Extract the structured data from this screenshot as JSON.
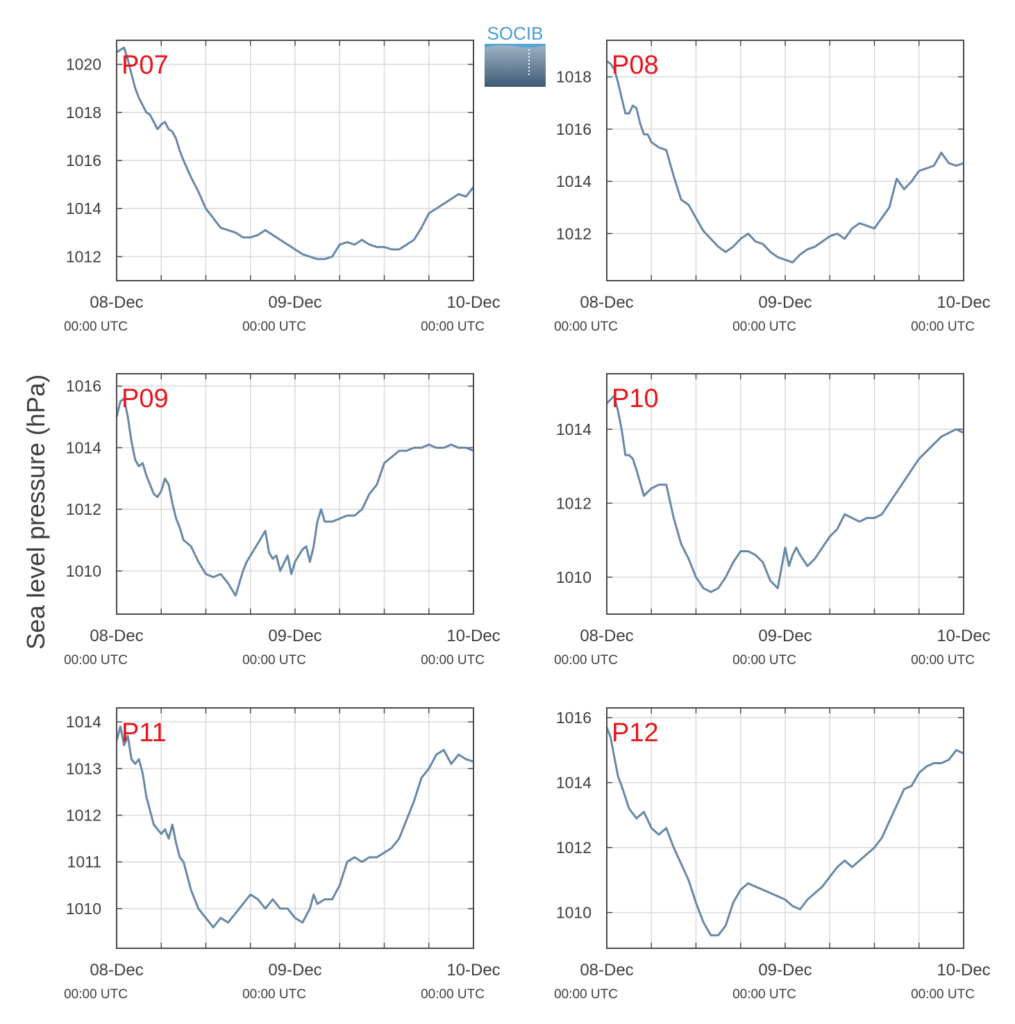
{
  "figure": {
    "ylabel": "Sea level pressure (hPa)",
    "logo_text": "SOCIB",
    "line_color": "#6787a6",
    "label_color": "#e8141b"
  },
  "chart_data": [
    {
      "type": "line",
      "name": "P07",
      "x_ticks": [
        {
          "major": "08-Dec",
          "minor": "00:00 UTC"
        },
        {
          "major": "09-Dec",
          "minor": "00:00 UTC"
        },
        {
          "major": "10-Dec",
          "minor": "00:00 UTC"
        }
      ],
      "xlim_hours": [
        0,
        48
      ],
      "ylim": [
        1011,
        1021
      ],
      "y_ticks": [
        1012,
        1014,
        1016,
        1018,
        1020
      ],
      "grid": true,
      "series": {
        "x_hours": [
          0,
          0.5,
          1,
          1.5,
          2,
          2.5,
          3,
          3.5,
          4,
          4.5,
          5,
          5.5,
          6,
          6.5,
          7,
          7.5,
          8,
          8.5,
          9,
          10,
          11,
          12,
          13,
          14,
          15,
          16,
          17,
          18,
          19,
          20,
          21,
          22,
          23,
          24,
          25,
          26,
          27,
          28,
          29,
          30,
          31,
          32,
          33,
          34,
          35,
          36,
          37,
          38,
          39,
          40,
          41,
          42,
          43,
          44,
          45,
          46,
          47,
          48
        ],
        "values": [
          1020.5,
          1020.6,
          1020.7,
          1020.2,
          1019.6,
          1019.0,
          1018.6,
          1018.3,
          1018.0,
          1017.9,
          1017.6,
          1017.3,
          1017.5,
          1017.6,
          1017.3,
          1017.2,
          1016.9,
          1016.4,
          1016.0,
          1015.3,
          1014.7,
          1014.0,
          1013.6,
          1013.2,
          1013.1,
          1013.0,
          1012.8,
          1012.8,
          1012.9,
          1013.1,
          1012.9,
          1012.7,
          1012.5,
          1012.3,
          1012.1,
          1012.0,
          1011.9,
          1011.9,
          1012.0,
          1012.5,
          1012.6,
          1012.5,
          1012.7,
          1012.5,
          1012.4,
          1012.4,
          1012.3,
          1012.3,
          1012.5,
          1012.7,
          1013.2,
          1013.8,
          1014.0,
          1014.2,
          1014.4,
          1014.6,
          1014.5,
          1014.9
        ]
      }
    },
    {
      "type": "line",
      "name": "P08",
      "x_ticks": [
        {
          "major": "08-Dec",
          "minor": "00:00 UTC"
        },
        {
          "major": "09-Dec",
          "minor": "00:00 UTC"
        },
        {
          "major": "10-Dec",
          "minor": "00:00 UTC"
        }
      ],
      "xlim_hours": [
        0,
        48
      ],
      "ylim": [
        1010.2,
        1019.4
      ],
      "y_ticks": [
        1012,
        1014,
        1016,
        1018
      ],
      "grid": true,
      "series": {
        "x_hours": [
          0,
          0.5,
          1,
          1.5,
          2,
          2.5,
          3,
          3.5,
          4,
          4.5,
          5,
          5.5,
          6,
          7,
          8,
          9,
          10,
          11,
          12,
          13,
          14,
          15,
          16,
          17,
          18,
          19,
          20,
          21,
          22,
          23,
          24,
          25,
          26,
          27,
          28,
          29,
          30,
          31,
          32,
          33,
          34,
          35,
          36,
          37,
          38,
          39,
          40,
          41,
          42,
          43,
          44,
          45,
          46,
          47,
          48
        ],
        "values": [
          1018.6,
          1018.5,
          1018.3,
          1017.8,
          1017.2,
          1016.6,
          1016.6,
          1016.9,
          1016.8,
          1016.2,
          1015.8,
          1015.8,
          1015.5,
          1015.3,
          1015.2,
          1014.2,
          1013.3,
          1013.1,
          1012.6,
          1012.1,
          1011.8,
          1011.5,
          1011.3,
          1011.5,
          1011.8,
          1012.0,
          1011.7,
          1011.6,
          1011.3,
          1011.1,
          1011.0,
          1010.9,
          1011.2,
          1011.4,
          1011.5,
          1011.7,
          1011.9,
          1012.0,
          1011.8,
          1012.2,
          1012.4,
          1012.3,
          1012.2,
          1012.6,
          1013.0,
          1014.1,
          1013.7,
          1014.0,
          1014.4,
          1014.5,
          1014.6,
          1015.1,
          1014.7,
          1014.6,
          1014.7
        ]
      }
    },
    {
      "type": "line",
      "name": "P09",
      "x_ticks": [
        {
          "major": "08-Dec",
          "minor": "00:00 UTC"
        },
        {
          "major": "09-Dec",
          "minor": "00:00 UTC"
        },
        {
          "major": "10-Dec",
          "minor": "00:00 UTC"
        }
      ],
      "xlim_hours": [
        0,
        48
      ],
      "ylim": [
        1008.6,
        1016.4
      ],
      "y_ticks": [
        1010,
        1012,
        1014,
        1016
      ],
      "grid": true,
      "series": {
        "x_hours": [
          0,
          0.5,
          1,
          1.5,
          2,
          2.5,
          3,
          3.5,
          4,
          4.5,
          5,
          5.5,
          6,
          6.5,
          7,
          7.5,
          8,
          8.5,
          9,
          10,
          11,
          12,
          13,
          14,
          15,
          16,
          17,
          17.5,
          18,
          19,
          20,
          20.5,
          21,
          21.5,
          22,
          23,
          23.5,
          24,
          25,
          25.5,
          26,
          26.5,
          27,
          27.5,
          28,
          29,
          30,
          31,
          32,
          33,
          34,
          35,
          36,
          37,
          38,
          39,
          40,
          41,
          42,
          43,
          44,
          45,
          46,
          47,
          48
        ],
        "values": [
          1015.0,
          1015.5,
          1015.6,
          1015.0,
          1014.2,
          1013.6,
          1013.4,
          1013.5,
          1013.1,
          1012.8,
          1012.5,
          1012.4,
          1012.6,
          1013.0,
          1012.8,
          1012.2,
          1011.7,
          1011.4,
          1011.0,
          1010.8,
          1010.3,
          1009.9,
          1009.8,
          1009.9,
          1009.6,
          1009.2,
          1010.0,
          1010.3,
          1010.5,
          1010.9,
          1011.3,
          1010.6,
          1010.4,
          1010.5,
          1010.0,
          1010.5,
          1009.9,
          1010.3,
          1010.7,
          1010.8,
          1010.3,
          1010.8,
          1011.6,
          1012.0,
          1011.6,
          1011.6,
          1011.7,
          1011.8,
          1011.8,
          1012.0,
          1012.5,
          1012.8,
          1013.5,
          1013.7,
          1013.9,
          1013.9,
          1014.0,
          1014.0,
          1014.1,
          1014.0,
          1014.0,
          1014.1,
          1014.0,
          1014.0,
          1013.9
        ]
      }
    },
    {
      "type": "line",
      "name": "P10",
      "x_ticks": [
        {
          "major": "08-Dec",
          "minor": "00:00 UTC"
        },
        {
          "major": "09-Dec",
          "minor": "00:00 UTC"
        },
        {
          "major": "10-Dec",
          "minor": "00:00 UTC"
        }
      ],
      "xlim_hours": [
        0,
        48
      ],
      "ylim": [
        1009.0,
        1015.5
      ],
      "y_ticks": [
        1010,
        1012,
        1014
      ],
      "grid": true,
      "series": {
        "x_hours": [
          0,
          0.5,
          1,
          1.5,
          2,
          2.5,
          3,
          3.5,
          4,
          5,
          6,
          7,
          8,
          9,
          10,
          11,
          12,
          13,
          14,
          15,
          16,
          17,
          18,
          19,
          20,
          21,
          22,
          23,
          24,
          24.5,
          25,
          25.5,
          26,
          27,
          28,
          29,
          30,
          31,
          32,
          33,
          34,
          35,
          36,
          37,
          38,
          39,
          40,
          41,
          42,
          43,
          44,
          45,
          46,
          47,
          48
        ],
        "values": [
          1014.7,
          1014.8,
          1014.9,
          1014.5,
          1014.0,
          1013.3,
          1013.3,
          1013.2,
          1012.9,
          1012.2,
          1012.4,
          1012.5,
          1012.5,
          1011.6,
          1010.9,
          1010.5,
          1010.0,
          1009.7,
          1009.6,
          1009.7,
          1010.0,
          1010.4,
          1010.7,
          1010.7,
          1010.6,
          1010.4,
          1009.9,
          1009.7,
          1010.8,
          1010.3,
          1010.6,
          1010.8,
          1010.6,
          1010.3,
          1010.5,
          1010.8,
          1011.1,
          1011.3,
          1011.7,
          1011.6,
          1011.5,
          1011.6,
          1011.6,
          1011.7,
          1012.0,
          1012.3,
          1012.6,
          1012.9,
          1013.2,
          1013.4,
          1013.6,
          1013.8,
          1013.9,
          1014.0,
          1013.9
        ]
      }
    },
    {
      "type": "line",
      "name": "P11",
      "x_ticks": [
        {
          "major": "08-Dec",
          "minor": "00:00 UTC"
        },
        {
          "major": "09-Dec",
          "minor": "00:00 UTC"
        },
        {
          "major": "10-Dec",
          "minor": "00:00 UTC"
        }
      ],
      "xlim_hours": [
        0,
        48
      ],
      "ylim": [
        1009.15,
        1014.3
      ],
      "y_ticks": [
        1010,
        1011,
        1012,
        1013,
        1014
      ],
      "grid": true,
      "series": {
        "x_hours": [
          0,
          0.5,
          1,
          1.5,
          2,
          2.5,
          3,
          3.5,
          4,
          5,
          6,
          6.5,
          7,
          7.5,
          8,
          8.5,
          9,
          10,
          11,
          12,
          13,
          14,
          15,
          16,
          17,
          18,
          19,
          20,
          21,
          22,
          23,
          24,
          25,
          26,
          26.5,
          27,
          28,
          29,
          30,
          31,
          32,
          33,
          34,
          35,
          36,
          37,
          38,
          39,
          40,
          41,
          42,
          43,
          44,
          45,
          46,
          47,
          48
        ],
        "values": [
          1013.6,
          1013.9,
          1013.5,
          1013.7,
          1013.2,
          1013.1,
          1013.2,
          1012.9,
          1012.4,
          1011.8,
          1011.6,
          1011.7,
          1011.5,
          1011.8,
          1011.4,
          1011.1,
          1011.0,
          1010.4,
          1010.0,
          1009.8,
          1009.6,
          1009.8,
          1009.7,
          1009.9,
          1010.1,
          1010.3,
          1010.2,
          1010.0,
          1010.2,
          1010.0,
          1010.0,
          1009.8,
          1009.7,
          1010.0,
          1010.3,
          1010.1,
          1010.2,
          1010.2,
          1010.5,
          1011.0,
          1011.1,
          1011.0,
          1011.1,
          1011.1,
          1011.2,
          1011.3,
          1011.5,
          1011.9,
          1012.3,
          1012.8,
          1013.0,
          1013.3,
          1013.4,
          1013.1,
          1013.3,
          1013.2,
          1013.15
        ]
      }
    },
    {
      "type": "line",
      "name": "P12",
      "x_ticks": [
        {
          "major": "08-Dec",
          "minor": "00:00 UTC"
        },
        {
          "major": "09-Dec",
          "minor": "00:00 UTC"
        },
        {
          "major": "10-Dec",
          "minor": "00:00 UTC"
        }
      ],
      "xlim_hours": [
        0,
        48
      ],
      "ylim": [
        1008.9,
        1016.3
      ],
      "y_ticks": [
        1010,
        1012,
        1014,
        1016
      ],
      "grid": true,
      "series": {
        "x_hours": [
          0,
          0.5,
          1,
          1.5,
          2,
          3,
          4,
          5,
          6,
          7,
          8,
          9,
          10,
          11,
          12,
          13,
          14,
          15,
          16,
          17,
          18,
          19,
          20,
          21,
          22,
          23,
          24,
          25,
          26,
          27,
          28,
          29,
          30,
          31,
          32,
          33,
          34,
          35,
          36,
          37,
          38,
          39,
          40,
          41,
          42,
          43,
          44,
          45,
          46,
          47,
          48
        ],
        "values": [
          1015.7,
          1015.4,
          1014.8,
          1014.2,
          1013.9,
          1013.2,
          1012.9,
          1013.1,
          1012.6,
          1012.4,
          1012.6,
          1012.0,
          1011.5,
          1011.0,
          1010.3,
          1009.7,
          1009.3,
          1009.3,
          1009.6,
          1010.3,
          1010.7,
          1010.9,
          1010.8,
          1010.7,
          1010.6,
          1010.5,
          1010.4,
          1010.2,
          1010.1,
          1010.4,
          1010.6,
          1010.8,
          1011.1,
          1011.4,
          1011.6,
          1011.4,
          1011.6,
          1011.8,
          1012.0,
          1012.3,
          1012.8,
          1013.3,
          1013.8,
          1013.9,
          1014.3,
          1014.5,
          1014.6,
          1014.6,
          1014.7,
          1015.0,
          1014.9
        ]
      }
    }
  ]
}
